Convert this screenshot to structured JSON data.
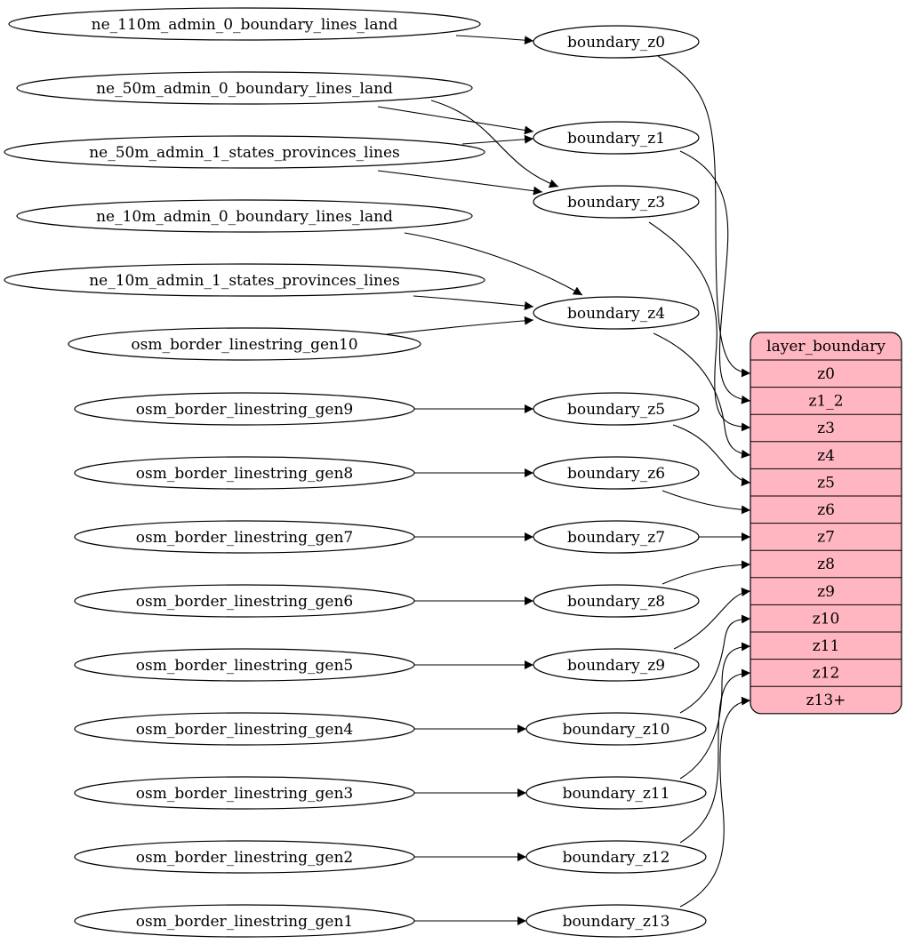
{
  "sources": [
    "ne_110m_admin_0_boundary_lines_land",
    "ne_50m_admin_0_boundary_lines_land",
    "ne_50m_admin_1_states_provinces_lines",
    "ne_10m_admin_0_boundary_lines_land",
    "ne_10m_admin_1_states_provinces_lines",
    "osm_border_linestring_gen10",
    "osm_border_linestring_gen9",
    "osm_border_linestring_gen8",
    "osm_border_linestring_gen7",
    "osm_border_linestring_gen6",
    "osm_border_linestring_gen5",
    "osm_border_linestring_gen4",
    "osm_border_linestring_gen3",
    "osm_border_linestring_gen2",
    "osm_border_linestring_gen1"
  ],
  "boundaries": [
    "boundary_z0",
    "boundary_z1",
    "boundary_z3",
    "boundary_z4",
    "boundary_z5",
    "boundary_z6",
    "boundary_z7",
    "boundary_z8",
    "boundary_z9",
    "boundary_z10",
    "boundary_z11",
    "boundary_z12",
    "boundary_z13"
  ],
  "layer": {
    "title": "layer_boundary",
    "fields": [
      "z0",
      "z1_2",
      "z3",
      "z4",
      "z5",
      "z6",
      "z7",
      "z8",
      "z9",
      "z10",
      "z11",
      "z12",
      "z13+"
    ],
    "fill": "#ffb6c1"
  },
  "edges_source_to_boundary": [
    [
      "ne_110m_admin_0_boundary_lines_land",
      "boundary_z0"
    ],
    [
      "ne_50m_admin_0_boundary_lines_land",
      "boundary_z1"
    ],
    [
      "ne_50m_admin_0_boundary_lines_land",
      "boundary_z3"
    ],
    [
      "ne_50m_admin_1_states_provinces_lines",
      "boundary_z1"
    ],
    [
      "ne_50m_admin_1_states_provinces_lines",
      "boundary_z3"
    ],
    [
      "ne_10m_admin_0_boundary_lines_land",
      "boundary_z4"
    ],
    [
      "ne_10m_admin_1_states_provinces_lines",
      "boundary_z4"
    ],
    [
      "osm_border_linestring_gen10",
      "boundary_z4"
    ],
    [
      "osm_border_linestring_gen9",
      "boundary_z5"
    ],
    [
      "osm_border_linestring_gen8",
      "boundary_z6"
    ],
    [
      "osm_border_linestring_gen7",
      "boundary_z7"
    ],
    [
      "osm_border_linestring_gen6",
      "boundary_z8"
    ],
    [
      "osm_border_linestring_gen5",
      "boundary_z9"
    ],
    [
      "osm_border_linestring_gen4",
      "boundary_z10"
    ],
    [
      "osm_border_linestring_gen3",
      "boundary_z11"
    ],
    [
      "osm_border_linestring_gen2",
      "boundary_z12"
    ],
    [
      "osm_border_linestring_gen1",
      "boundary_z13"
    ]
  ],
  "edges_boundary_to_layer": [
    [
      "boundary_z0",
      "z0"
    ],
    [
      "boundary_z1",
      "z1_2"
    ],
    [
      "boundary_z3",
      "z3"
    ],
    [
      "boundary_z4",
      "z4"
    ],
    [
      "boundary_z5",
      "z5"
    ],
    [
      "boundary_z6",
      "z6"
    ],
    [
      "boundary_z7",
      "z7"
    ],
    [
      "boundary_z8",
      "z8"
    ],
    [
      "boundary_z9",
      "z9"
    ],
    [
      "boundary_z10",
      "z10"
    ],
    [
      "boundary_z11",
      "z11"
    ],
    [
      "boundary_z12",
      "z12"
    ],
    [
      "boundary_z13",
      "z13+"
    ]
  ]
}
